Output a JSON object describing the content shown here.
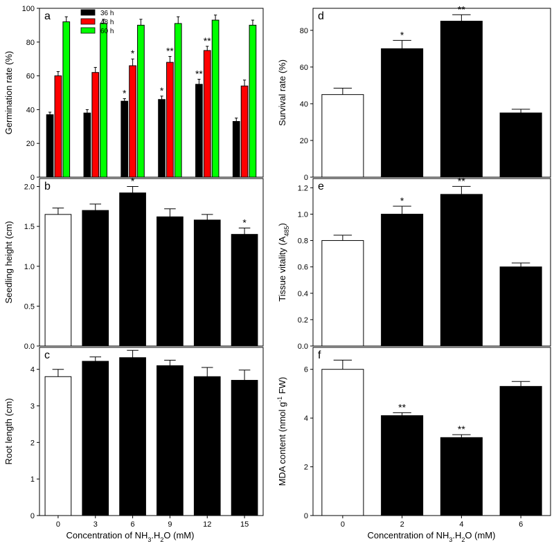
{
  "x_axis_title_left": "Concentration of NH3.H2O (mM)",
  "x_axis_title_right": "Concentration of NH3.H2O (mM)",
  "chart_data": [
    {
      "id": "a",
      "panel_label": "a",
      "type": "bar",
      "ylabel": "Germination rate (%)",
      "ylim": [
        0,
        100
      ],
      "yticks": [
        0,
        20,
        40,
        60,
        80,
        100
      ],
      "categories": [
        "0",
        "3",
        "6",
        "9",
        "12",
        "15"
      ],
      "show_xticks": false,
      "legend": {
        "position": "top-left",
        "entries": [
          "36 h",
          "48 h",
          "60 h"
        ]
      },
      "series": [
        {
          "name": "36 h",
          "color": "#000000",
          "values": [
            37,
            38,
            45,
            46,
            55,
            33
          ],
          "errors": [
            1.5,
            2,
            1.5,
            2,
            3,
            2
          ],
          "sig": [
            "",
            "",
            "*",
            "*",
            "**",
            ""
          ]
        },
        {
          "name": "48 h",
          "color": "#ff0000",
          "values": [
            60,
            62,
            66,
            68,
            75,
            54
          ],
          "errors": [
            2.5,
            3,
            4,
            3.5,
            2.5,
            3.5
          ],
          "sig": [
            "",
            "",
            "*",
            "**",
            "**",
            ""
          ]
        },
        {
          "name": "60 h",
          "color": "#00ff00",
          "values": [
            92,
            91,
            90,
            91,
            93,
            90
          ],
          "errors": [
            3,
            2.5,
            3.5,
            4,
            3,
            3
          ],
          "sig": [
            "",
            "",
            "",
            "",
            "",
            ""
          ]
        }
      ]
    },
    {
      "id": "b",
      "panel_label": "b",
      "type": "bar",
      "ylabel": "Seedling height (cm)",
      "ylim": [
        0,
        2.1
      ],
      "yticks": [
        "0.0",
        "0.5",
        "1.0",
        "1.5",
        "2.0"
      ],
      "categories": [
        "0",
        "3",
        "6",
        "9",
        "12",
        "15"
      ],
      "show_xticks": false,
      "series": [
        {
          "values": [
            1.65,
            1.7,
            1.92,
            1.62,
            1.58,
            1.4
          ],
          "errors": [
            0.08,
            0.08,
            0.08,
            0.1,
            0.07,
            0.08
          ],
          "sig": [
            "",
            "",
            "*",
            "",
            "",
            "*"
          ],
          "fills": [
            "#ffffff",
            "#000000",
            "#000000",
            "#000000",
            "#000000",
            "#000000"
          ]
        }
      ]
    },
    {
      "id": "c",
      "panel_label": "c",
      "type": "bar",
      "ylabel": "Root length (cm)",
      "ylim": [
        0,
        4.6
      ],
      "yticks": [
        "0",
        "1",
        "2",
        "3",
        "4"
      ],
      "categories": [
        "0",
        "3",
        "6",
        "9",
        "12",
        "15"
      ],
      "show_xticks": true,
      "series": [
        {
          "values": [
            3.8,
            4.22,
            4.32,
            4.1,
            3.8,
            3.7
          ],
          "errors": [
            0.2,
            0.12,
            0.2,
            0.15,
            0.25,
            0.28
          ],
          "sig": [
            "",
            "",
            "",
            "",
            "",
            ""
          ],
          "fills": [
            "#ffffff",
            "#000000",
            "#000000",
            "#000000",
            "#000000",
            "#000000"
          ]
        }
      ]
    },
    {
      "id": "d",
      "panel_label": "d",
      "type": "bar",
      "ylabel": "Survival rate (%)",
      "ylim": [
        0,
        92
      ],
      "yticks": [
        0,
        20,
        40,
        60,
        80
      ],
      "categories": [
        "0",
        "2",
        "4",
        "6"
      ],
      "show_xticks": false,
      "series": [
        {
          "values": [
            45,
            70,
            85,
            35
          ],
          "errors": [
            3.5,
            4.5,
            3.5,
            2
          ],
          "sig": [
            "",
            "*",
            "**",
            ""
          ],
          "fills": [
            "#ffffff",
            "#000000",
            "#000000",
            "#000000"
          ]
        }
      ]
    },
    {
      "id": "e",
      "panel_label": "e",
      "type": "bar",
      "ylabel": "Tissue vitality (A485)",
      "ylim": [
        0,
        1.27
      ],
      "yticks": [
        "0.0",
        "0.2",
        "0.4",
        "0.6",
        "0.8",
        "1.0",
        "1.2"
      ],
      "categories": [
        "0",
        "2",
        "4",
        "6"
      ],
      "show_xticks": false,
      "series": [
        {
          "values": [
            0.8,
            1.0,
            1.15,
            0.6
          ],
          "errors": [
            0.04,
            0.06,
            0.06,
            0.03
          ],
          "sig": [
            "",
            "*",
            "**",
            ""
          ],
          "fills": [
            "#ffffff",
            "#000000",
            "#000000",
            "#000000"
          ]
        }
      ]
    },
    {
      "id": "f",
      "panel_label": "f",
      "type": "bar",
      "ylabel": "MDA content (nmol g-1 FW)",
      "ylim": [
        0,
        6.9
      ],
      "yticks": [
        "0",
        "2",
        "4",
        "6"
      ],
      "categories": [
        "0",
        "2",
        "4",
        "6"
      ],
      "show_xticks": true,
      "series": [
        {
          "values": [
            6.0,
            4.1,
            3.2,
            5.3
          ],
          "errors": [
            0.38,
            0.12,
            0.12,
            0.2
          ],
          "sig": [
            "",
            "**",
            "**",
            ""
          ],
          "fills": [
            "#ffffff",
            "#000000",
            "#000000",
            "#000000"
          ]
        }
      ]
    }
  ]
}
